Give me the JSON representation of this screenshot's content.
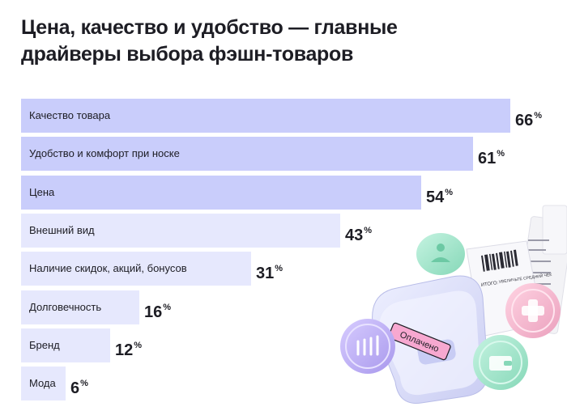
{
  "title": "Цена, качество и удобство — главные драйверы выбора фэшн-товаров",
  "chart_data": {
    "type": "bar",
    "orientation": "horizontal",
    "title": "Цена, качество и удобство — главные драйверы выбора фэшн-товаров",
    "unit": "%",
    "xlim": [
      0,
      66
    ],
    "categories": [
      "Качество товара",
      "Удобство и комфорт при носке",
      "Цена",
      "Внешний вид",
      "Наличие скидок, акций, бонусов",
      "Долговечность",
      "Бренд",
      "Мода"
    ],
    "values": [
      66,
      61,
      54,
      43,
      31,
      16,
      12,
      6
    ],
    "bar_colors": [
      "#c9cdfb",
      "#c9cdfb",
      "#c9cdfb",
      "#e6e8fd",
      "#e6e8fd",
      "#e6e8fd",
      "#e6e8fd",
      "#e6e8fd"
    ]
  },
  "illustration": {
    "paid_label": "Оплачено",
    "receipt_total_label": "ИТОГО:",
    "receipt_message": "УВЕЛИЧЬТЕ СРЕДНИЙ ЧЕК"
  },
  "colors": {
    "bar_strong": "#c9cdfb",
    "bar_light": "#e6e8fd",
    "text": "#1d1d24",
    "coin_purple": "#c4b5f7",
    "coin_mint": "#a8e8cf",
    "coin_pink": "#f4b8cf",
    "badge_pink": "#f7a8d0"
  }
}
